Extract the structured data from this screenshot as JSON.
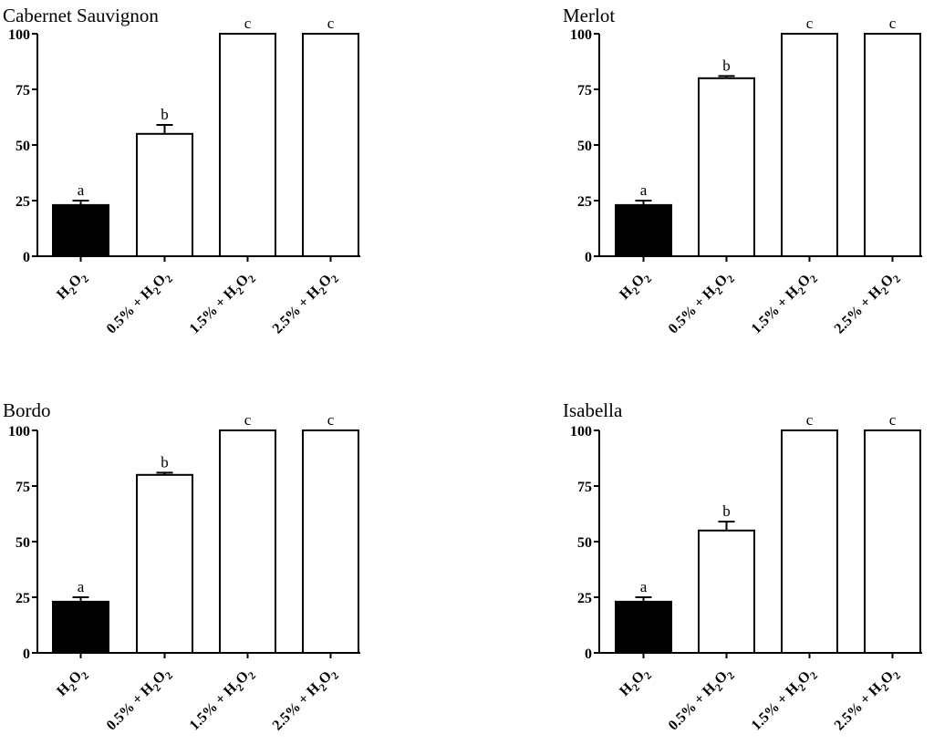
{
  "chart_data": [
    {
      "type": "bar",
      "title": "Cabernet Sauvignon",
      "categories": [
        "H2O2",
        "0.5% + H2O2",
        "1.5% + H2O2",
        "2.5% + H2O2"
      ],
      "values": [
        23,
        55,
        100,
        100
      ],
      "errors": [
        2,
        4,
        0,
        0
      ],
      "significance": [
        "a",
        "b",
        "c",
        "c"
      ],
      "bar_fills": [
        "#000000",
        "#ffffff",
        "#ffffff",
        "#ffffff"
      ],
      "ylim": [
        0,
        100
      ],
      "yticks": [
        0,
        25,
        50,
        75,
        100
      ],
      "xlabel": "",
      "ylabel": ""
    },
    {
      "type": "bar",
      "title": "Merlot",
      "categories": [
        "H2O2",
        "0.5% + H2O2",
        "1.5% + H2O2",
        "2.5% + H2O2"
      ],
      "values": [
        23,
        80,
        100,
        100
      ],
      "errors": [
        2,
        1,
        0,
        0
      ],
      "significance": [
        "a",
        "b",
        "c",
        "c"
      ],
      "bar_fills": [
        "#000000",
        "#ffffff",
        "#ffffff",
        "#ffffff"
      ],
      "ylim": [
        0,
        100
      ],
      "yticks": [
        0,
        25,
        50,
        75,
        100
      ],
      "xlabel": "",
      "ylabel": ""
    },
    {
      "type": "bar",
      "title": "Bordo",
      "categories": [
        "H2O2",
        "0.5% + H2O2",
        "1.5% + H2O2",
        "2.5% + H2O2"
      ],
      "values": [
        23,
        80,
        100,
        100
      ],
      "errors": [
        2,
        1,
        0,
        0
      ],
      "significance": [
        "a",
        "b",
        "c",
        "c"
      ],
      "bar_fills": [
        "#000000",
        "#ffffff",
        "#ffffff",
        "#ffffff"
      ],
      "ylim": [
        0,
        100
      ],
      "yticks": [
        0,
        25,
        50,
        75,
        100
      ],
      "xlabel": "",
      "ylabel": ""
    },
    {
      "type": "bar",
      "title": "Isabella",
      "categories": [
        "H2O2",
        "0.5% + H2O2",
        "1.5% + H2O2",
        "2.5% + H2O2"
      ],
      "values": [
        23,
        55,
        100,
        100
      ],
      "errors": [
        2,
        4,
        0,
        0
      ],
      "significance": [
        "a",
        "b",
        "c",
        "c"
      ],
      "bar_fills": [
        "#000000",
        "#ffffff",
        "#ffffff",
        "#ffffff"
      ],
      "ylim": [
        0,
        100
      ],
      "yticks": [
        0,
        25,
        50,
        75,
        100
      ],
      "xlabel": "",
      "ylabel": ""
    }
  ]
}
